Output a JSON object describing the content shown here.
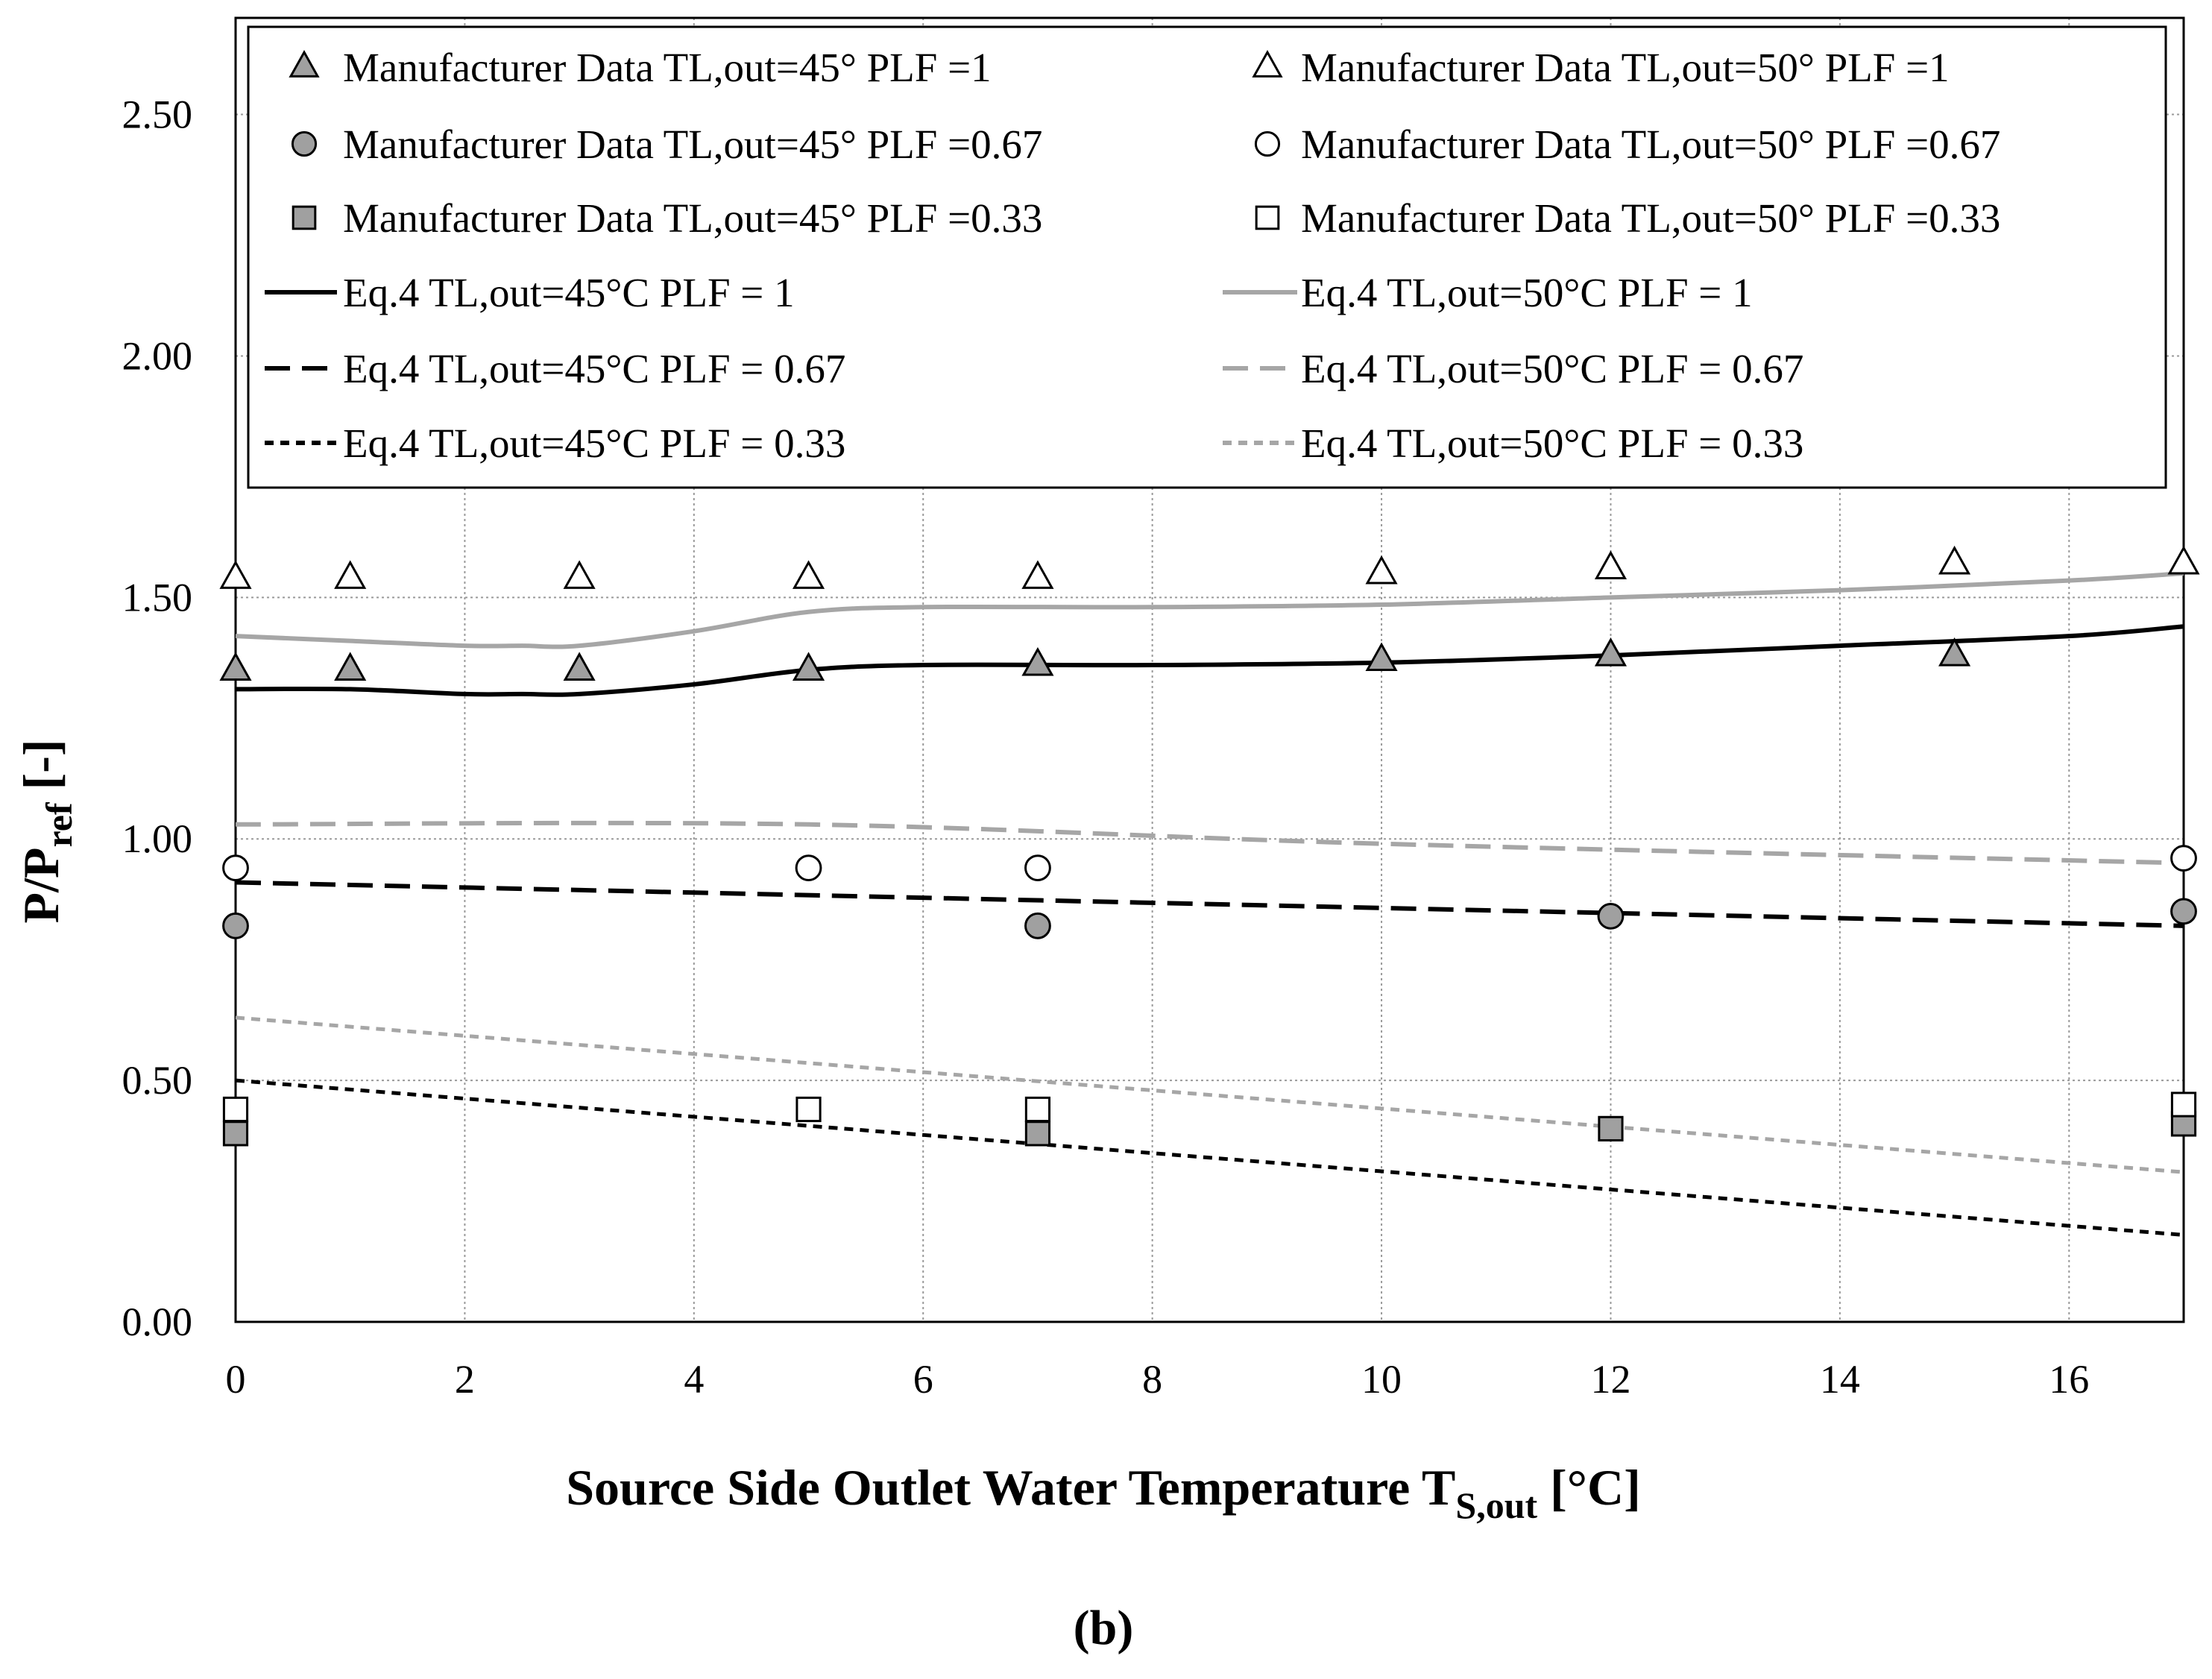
{
  "chart_data": {
    "type": "scatter",
    "panel_label": "(b)",
    "xlabel": {
      "main": "Source Side Outlet Water Temperature T",
      "sub": "S,out",
      "unit": " [°C]"
    },
    "ylabel": {
      "main": "P/P",
      "sub": "ref",
      "unit": " [-]"
    },
    "xlim": [
      0,
      17
    ],
    "ylim": [
      0,
      2.7
    ],
    "xticks": [
      0,
      2,
      4,
      6,
      8,
      10,
      12,
      14,
      16
    ],
    "xtick_labels": [
      "0",
      "2",
      "4",
      "6",
      "8",
      "10",
      "12",
      "14",
      "16"
    ],
    "yticks": [
      0,
      0.5,
      1.0,
      1.5,
      2.0,
      2.5
    ],
    "ytick_labels": [
      "0.00",
      "0.50",
      "1.00",
      "1.50",
      "2.00",
      "2.50"
    ],
    "grid": true,
    "legend_position": "top, two columns",
    "colors": {
      "dark": "#000000",
      "light": "#a6a6a6",
      "marker_fill": "#a0a0a0",
      "hollow_fill": "#ffffff"
    },
    "series": [
      {
        "name": "Manufacturer Data TL,out=45° PLF =1",
        "kind": "marker",
        "marker": "triangle",
        "fill": "gray",
        "x": [
          0,
          1,
          3,
          5,
          7,
          10,
          12,
          15
        ],
        "y": [
          1.35,
          1.35,
          1.35,
          1.35,
          1.36,
          1.37,
          1.38,
          1.38
        ]
      },
      {
        "name": "Manufacturer Data TL,out=50° PLF =1",
        "kind": "marker",
        "marker": "triangle",
        "fill": "white",
        "x": [
          0,
          1,
          3,
          5,
          7,
          10,
          12,
          15,
          17
        ],
        "y": [
          1.54,
          1.54,
          1.54,
          1.54,
          1.54,
          1.55,
          1.56,
          1.57,
          1.57
        ]
      },
      {
        "name": "Manufacturer Data TL,out=45° PLF =0.67",
        "kind": "marker",
        "marker": "circle",
        "fill": "gray",
        "x": [
          0,
          7,
          12,
          17
        ],
        "y": [
          0.82,
          0.82,
          0.84,
          0.85
        ]
      },
      {
        "name": "Manufacturer Data TL,out=50° PLF =0.67",
        "kind": "marker",
        "marker": "circle",
        "fill": "white",
        "x": [
          0,
          5,
          7,
          17
        ],
        "y": [
          0.94,
          0.94,
          0.94,
          0.96
        ]
      },
      {
        "name": "Manufacturer Data TL,out=45° PLF =0.33",
        "kind": "marker",
        "marker": "square",
        "fill": "gray",
        "x": [
          0,
          7,
          12,
          17
        ],
        "y": [
          0.39,
          0.39,
          0.4,
          0.41
        ]
      },
      {
        "name": "Manufacturer Data TL,out=50° PLF =0.33",
        "kind": "marker",
        "marker": "square",
        "fill": "white",
        "x": [
          0,
          5,
          7,
          17
        ],
        "y": [
          0.44,
          0.44,
          0.44,
          0.45
        ]
      },
      {
        "name": "Eq.4 TL,out=45°C PLF = 1",
        "kind": "line",
        "color": "dark",
        "dash": "solid",
        "x": [
          0,
          1,
          2,
          2.5,
          3,
          4,
          5,
          6,
          8,
          10,
          12,
          14,
          16,
          17
        ],
        "y": [
          1.31,
          1.31,
          1.3,
          1.3,
          1.3,
          1.32,
          1.35,
          1.36,
          1.36,
          1.365,
          1.38,
          1.4,
          1.42,
          1.44
        ]
      },
      {
        "name": "Eq.4 TL,out=50°C PLF = 1",
        "kind": "line",
        "color": "light",
        "dash": "solid",
        "x": [
          0,
          1,
          2,
          2.5,
          3,
          4,
          5,
          6,
          8,
          10,
          12,
          14,
          16,
          17
        ],
        "y": [
          1.42,
          1.41,
          1.4,
          1.4,
          1.4,
          1.43,
          1.47,
          1.48,
          1.48,
          1.485,
          1.5,
          1.515,
          1.535,
          1.55
        ]
      },
      {
        "name": "Eq.4 TL,out=45°C PLF = 0.67",
        "kind": "line",
        "color": "dark",
        "dash": "long",
        "x": [
          0,
          17
        ],
        "y": [
          0.91,
          0.82
        ]
      },
      {
        "name": "Eq.4 TL,out=50°C PLF = 0.67",
        "kind": "line",
        "color": "light",
        "dash": "long",
        "x": [
          0,
          5,
          10,
          17
        ],
        "y": [
          1.03,
          1.03,
          0.99,
          0.95
        ]
      },
      {
        "name": "Eq.4 TL,out=45°C PLF = 0.33",
        "kind": "line",
        "color": "dark",
        "dash": "short",
        "x": [
          0,
          17
        ],
        "y": [
          0.5,
          0.18
        ]
      },
      {
        "name": "Eq.4 TL,out=50°C PLF = 0.33",
        "kind": "line",
        "color": "light",
        "dash": "short",
        "x": [
          0,
          17
        ],
        "y": [
          0.63,
          0.31
        ]
      }
    ]
  }
}
